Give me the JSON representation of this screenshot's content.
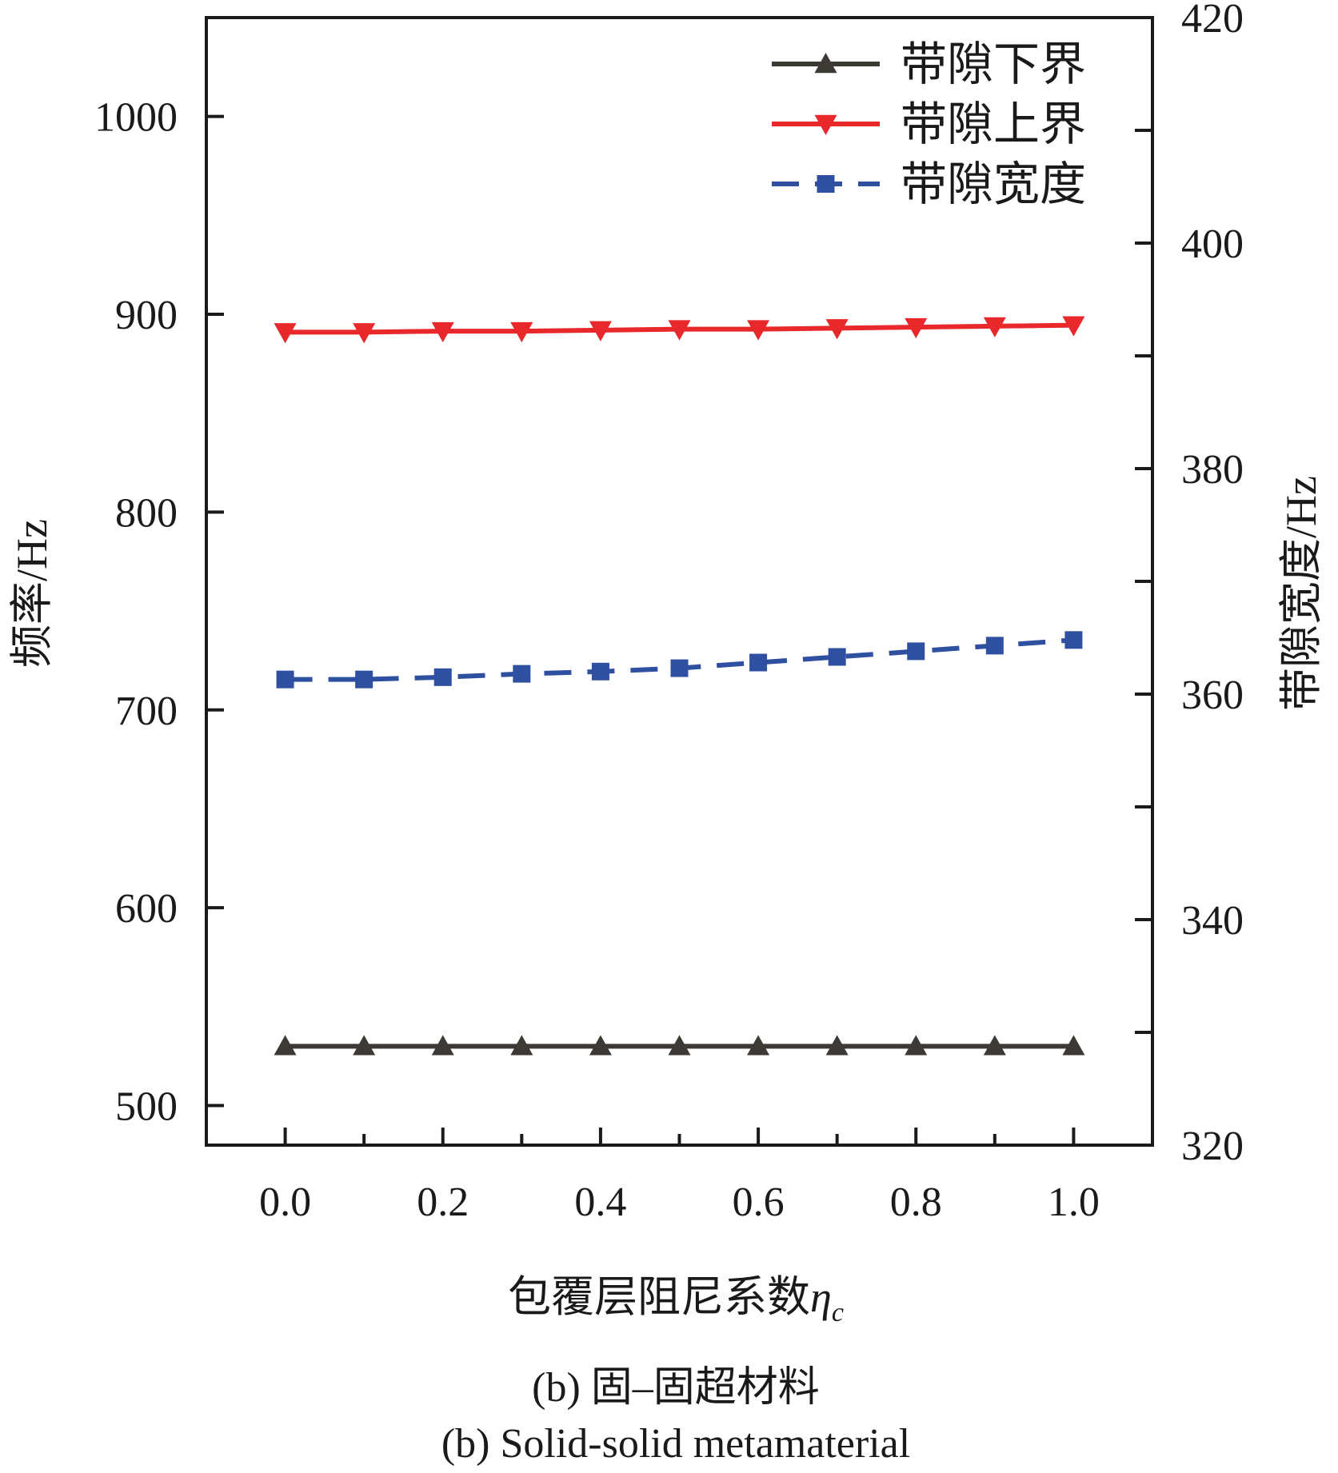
{
  "chart_data": {
    "type": "line",
    "x": [
      0.0,
      0.1,
      0.2,
      0.3,
      0.4,
      0.5,
      0.6,
      0.7,
      0.8,
      0.9,
      1.0
    ],
    "xticks": [
      "0.0",
      "0.2",
      "0.4",
      "0.6",
      "0.8",
      "1.0"
    ],
    "xlabel": "包覆层阻尼系数",
    "xlabel_symbol": "η",
    "xlabel_subscript": "c",
    "xlim": [
      -0.1,
      1.1
    ],
    "ylabel_left": "频率/Hz",
    "ylim_left": [
      480,
      1050
    ],
    "yticks_left": [
      "500",
      "600",
      "700",
      "800",
      "900",
      "1000"
    ],
    "ylabel_right": "带隙宽度/Hz",
    "ylim_right": [
      320,
      420
    ],
    "yticks_right": [
      "320",
      "340",
      "360",
      "380",
      "400",
      "420"
    ],
    "series": [
      {
        "name": "带隙下界",
        "axis": "left",
        "marker": "triangle-up",
        "line": "solid",
        "color": "#3d3935",
        "values": [
          530,
          530,
          530,
          530,
          530,
          530,
          530,
          530,
          530,
          530,
          530
        ]
      },
      {
        "name": "带隙上界",
        "axis": "left",
        "marker": "triangle-down",
        "line": "solid",
        "color": "#e8282b",
        "values": [
          891,
          891,
          891.5,
          891.5,
          892,
          892.5,
          892.5,
          893,
          893.5,
          894,
          894.5
        ]
      },
      {
        "name": "带隙宽度",
        "axis": "right",
        "marker": "square",
        "line": "dashed",
        "color": "#2f4fa0",
        "values": [
          361.3,
          361.3,
          361.5,
          361.8,
          362.0,
          362.3,
          362.8,
          363.3,
          363.8,
          364.3,
          364.8
        ]
      }
    ],
    "legend": "top-right",
    "grid": false
  },
  "caption": {
    "line1": "(b) 固–固超材料",
    "line2": "(b) Solid-solid metamaterial"
  }
}
